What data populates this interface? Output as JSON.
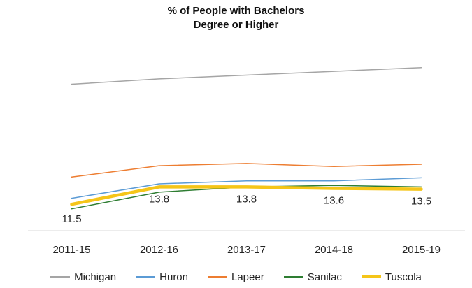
{
  "chart_data": {
    "type": "line",
    "title": "% of People with Bachelors Degree or Higher",
    "title_lines": [
      "% of People with Bachelors",
      "Degree or Higher"
    ],
    "xlabel": "",
    "ylabel": "",
    "categories": [
      "2011-15",
      "2012-16",
      "2013-17",
      "2014-18",
      "2015-19"
    ],
    "ylim": [
      8,
      33
    ],
    "grid": false,
    "legend_position": "bottom",
    "series": [
      {
        "name": "Michigan",
        "color": "#a5a5a5",
        "width": 1.5,
        "values": [
          27.4,
          28.1,
          28.6,
          29.1,
          29.6
        ]
      },
      {
        "name": "Huron",
        "color": "#5b9bd5",
        "width": 1.5,
        "values": [
          12.3,
          14.2,
          14.6,
          14.6,
          15.0
        ]
      },
      {
        "name": "Lapeer",
        "color": "#ed7d31",
        "width": 1.5,
        "values": [
          15.1,
          16.6,
          16.9,
          16.5,
          16.8
        ]
      },
      {
        "name": "Sanilac",
        "color": "#2e7d32",
        "width": 1.5,
        "values": [
          10.9,
          13.1,
          13.8,
          14.0,
          13.8
        ]
      },
      {
        "name": "Tuscola",
        "color": "#f5c518",
        "width": 4.5,
        "values": [
          11.5,
          13.8,
          13.8,
          13.6,
          13.5
        ]
      }
    ],
    "data_labels": {
      "series": "Tuscola",
      "labels": [
        "11.5",
        "13.8",
        "13.8",
        "13.6",
        "13.5"
      ]
    }
  }
}
